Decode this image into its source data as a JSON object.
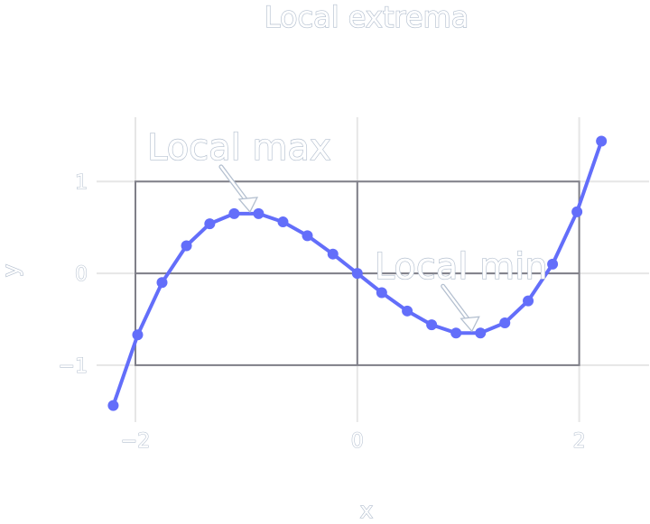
{
  "chart_data": {
    "type": "line",
    "title": "Local extrema",
    "xlabel": "x",
    "ylabel": "y",
    "xlim": [
      -2.35,
      2.63
    ],
    "ylim": [
      -1.62,
      1.7
    ],
    "grid": true,
    "x_ticks": [
      -2,
      0,
      2
    ],
    "x_tick_labels": [
      "−2",
      "0",
      "2"
    ],
    "y_ticks": [
      -1,
      0,
      1
    ],
    "y_tick_labels": [
      "−1",
      "0",
      "1"
    ],
    "series": [
      {
        "x": [
          -2.2,
          -1.98,
          -1.76,
          -1.54,
          -1.33,
          -1.11,
          -0.89,
          -0.67,
          -0.45,
          -0.22,
          0,
          0.22,
          0.45,
          0.67,
          0.89,
          1.11,
          1.33,
          1.54,
          1.76,
          1.98,
          2.2
        ],
        "y": [
          -1.44,
          -0.67,
          -0.1,
          0.3,
          0.54,
          0.65,
          0.65,
          0.56,
          0.41,
          0.21,
          0,
          -0.21,
          -0.41,
          -0.56,
          -0.65,
          -0.65,
          -0.54,
          -0.3,
          0.1,
          0.67,
          1.44
        ],
        "color": "#636efa"
      }
    ],
    "shapes": [
      {
        "type": "rect",
        "x0": -2,
        "x1": 2,
        "y0": -1,
        "y1": 1,
        "line_color": "#7f7f88"
      },
      {
        "type": "line",
        "x0": 0,
        "x1": 0,
        "y0": -1,
        "y1": 1,
        "line_color": "#7f7f88"
      },
      {
        "type": "line",
        "x0": -2,
        "x1": 2,
        "y0": 0,
        "y1": 0,
        "line_color": "#7f7f88"
      }
    ],
    "annotations": [
      {
        "text": "Local max",
        "x": -1.0,
        "y": 0.65
      },
      {
        "text": "Local min",
        "x": 1.0,
        "y": -0.65
      }
    ]
  }
}
